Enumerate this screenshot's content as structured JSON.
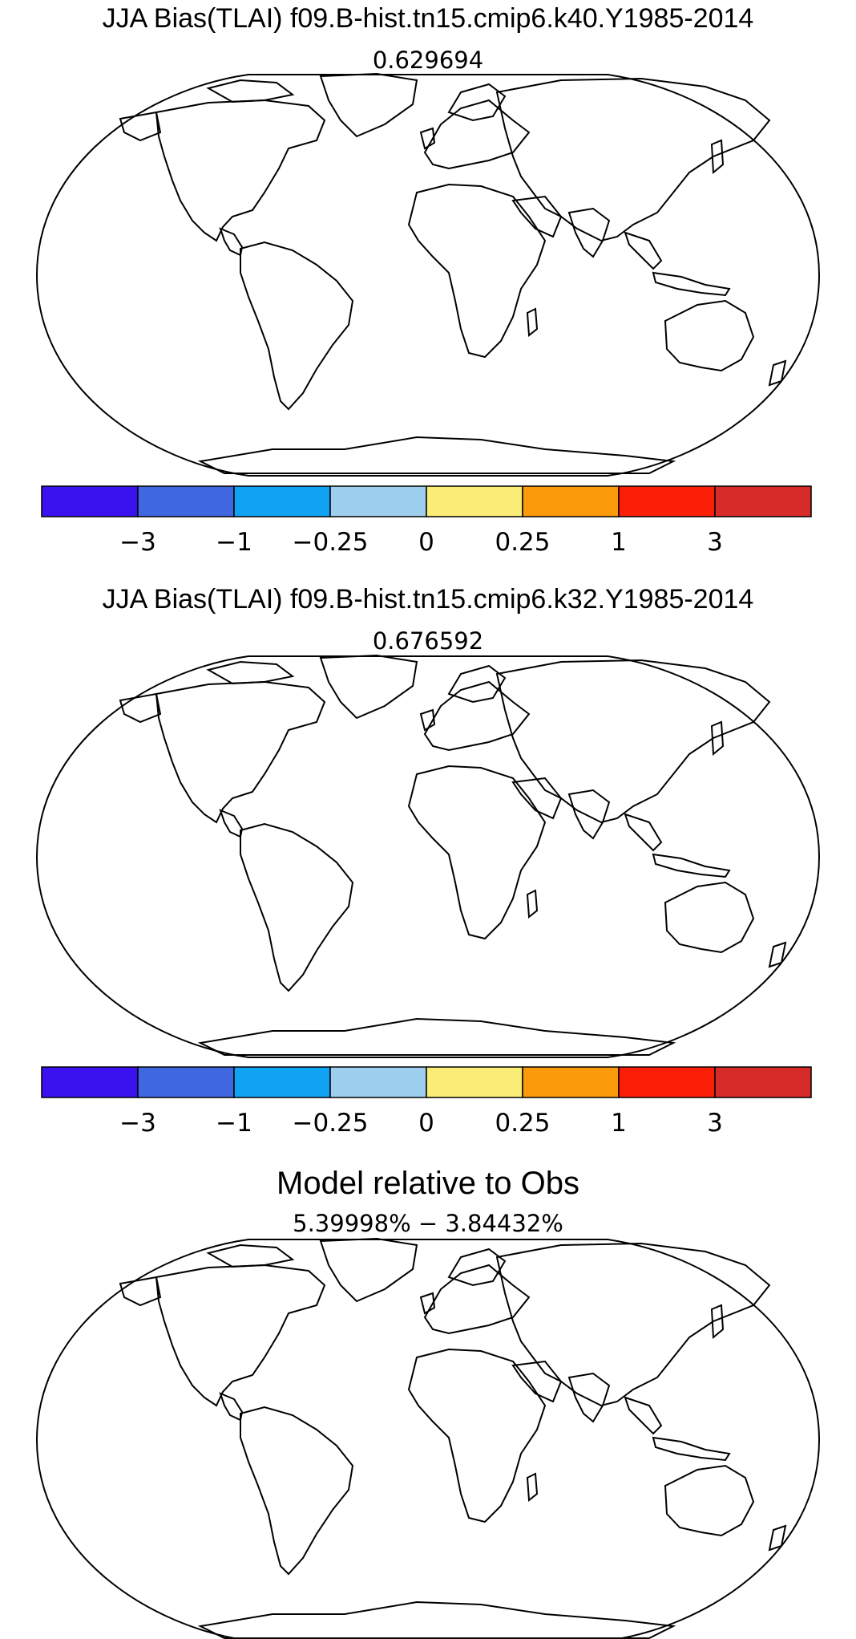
{
  "panels": [
    {
      "title": "JJA Bias(TLAI) f09.B-hist.tn15.cmip6.k40.Y1985-2014",
      "subtitle": "0.629694",
      "kind": "bias"
    },
    {
      "title": "JJA Bias(TLAI) f09.B-hist.tn15.cmip6.k32.Y1985-2014",
      "subtitle": "0.676592",
      "kind": "bias"
    },
    {
      "title": "Model relative to Obs",
      "subtitle": "5.39998% − 3.84432%",
      "kind": "significance"
    }
  ],
  "colorbar": {
    "colors": [
      "#3a12f0",
      "#3f67e0",
      "#11a3f3",
      "#9ecfee",
      "#faed76",
      "#fb9a0b",
      "#fb1f08",
      "#d62b28"
    ],
    "labels": [
      "−3",
      "−1",
      "−0.25",
      "0",
      "0.25",
      "1",
      "3"
    ]
  },
  "significance_colors": {
    "positive": "#f21010",
    "negative": "#11ee11"
  }
}
